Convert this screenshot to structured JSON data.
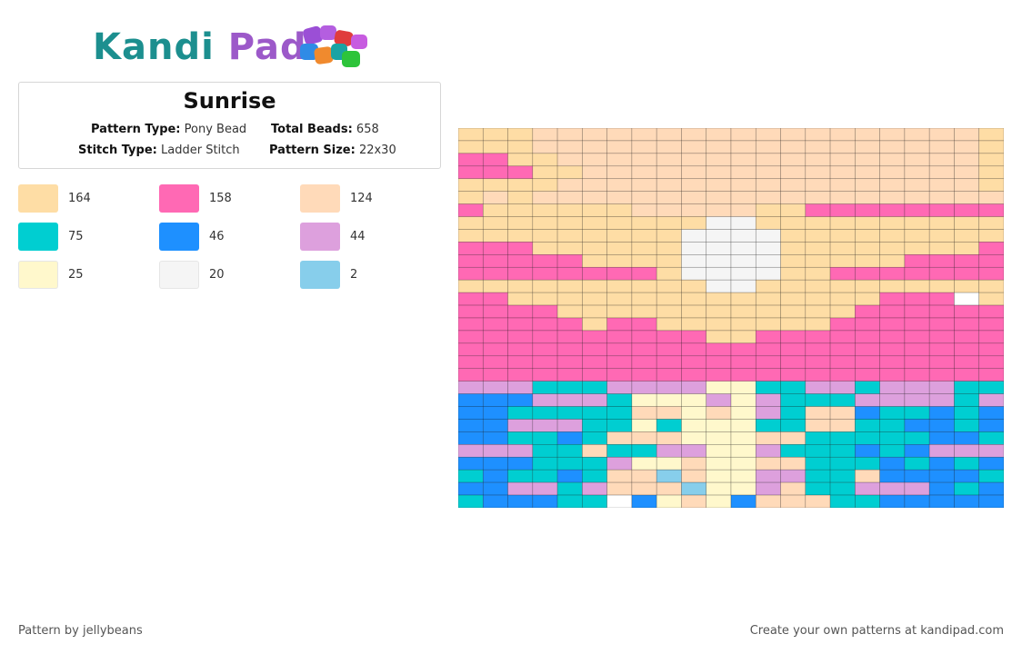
{
  "logo": {
    "part1": "Kandi",
    "part2": "Pad"
  },
  "pattern_info": {
    "title": "Sunrise",
    "pattern_type_label": "Pattern Type:",
    "pattern_type": "Pony Bead",
    "total_beads_label": "Total Beads:",
    "total_beads": "658",
    "stitch_type_label": "Stitch Type:",
    "stitch_type": "Ladder Stitch",
    "pattern_size_label": "Pattern Size:",
    "pattern_size": "22x30"
  },
  "legend": [
    {
      "color": "#FEDDA5",
      "count": "164"
    },
    {
      "color": "#FF69B4",
      "count": "158"
    },
    {
      "color": "#FFDAB9",
      "count": "124"
    },
    {
      "color": "#00CED1",
      "count": "75"
    },
    {
      "color": "#1E90FF",
      "count": "46"
    },
    {
      "color": "#DDA0DD",
      "count": "44"
    },
    {
      "color": "#FFF8CC",
      "count": "25"
    },
    {
      "color": "#F5F5F5",
      "count": "20"
    },
    {
      "color": "#87CEEB",
      "count": "2"
    }
  ],
  "grid": {
    "key": {
      "A": "#FEDDA5",
      "B": "#FFDAB9",
      "K": "#FF69B4",
      "T": "#00CED1",
      "D": "#1E90FF",
      "L": "#DDA0DD",
      "Y": "#FFF8CC",
      "W": "#F5F5F5",
      "S": "#87CEEB",
      "X": "#FFFFFF"
    },
    "rows": [
      "AAABBBBBBBBBBBBBBBBBBA",
      "AAABBBBBBBBBBBBBBBBBBA",
      "KKAABBBBBBBBBBBBBBBBBA",
      "KKKAABBBBBBBBBBBBBBBBA",
      "AAAABBBBBBBBBBBBBBBBBA",
      "ABABBBBBBBBBBBBBBBBBBB",
      "KAAAAAABBBBBAAKKKKKKKK",
      "AAAAAAAAAAWWAAAAAAAAAA",
      "AAAAAAAAAWWWWAAAAAAAAA",
      "KKKAAAAAAWWWWAAAAAAAAK",
      "KKKKKAAAAWWWWAAAAAKKKK",
      "KKKKKKKKAWWWWAAKKKKKKK",
      "AAAAAAAAAAWWAAAAAAAAAA",
      "KKAAAAAAAAAAAAAAAKKKXA",
      "KKKKAAAAAAAAAAAAKKKKKK",
      "KKKKKAKKAAAAAAAKKKKKKK",
      "KKKKKKKKKKAAKKKKKKKKKK",
      "KKKKKKKKKKKKKKKKKKKKKK",
      "KKKKKKKKKKKKKKKKKKKKKK",
      "KKKKKKKKKKKKKKKKKKKKKK",
      "LLLTTTLLLLYYTTLLTLLLTT",
      "DDDLLLTYYYLYLTTTLLLLTL",
      "DDTTTTTBBYBYLTBBDTTDTD",
      "DDLLLTTYTYYYTTBBTTDDTD",
      "DDTTDTBBBYYYBBTTTTTDDT",
      "LLLTTBTTLLYYLTTTDTDLLL",
      "DDDTTTLYYBYYBBTTTDTDTD",
      "TDTTDTBBSBYYLLTTBDDDDT",
      "DDLLTLBBBSYYLBTTLLLDTD",
      "TDDDTTXDYBYDBBBTTDDDDD"
    ]
  }
}
